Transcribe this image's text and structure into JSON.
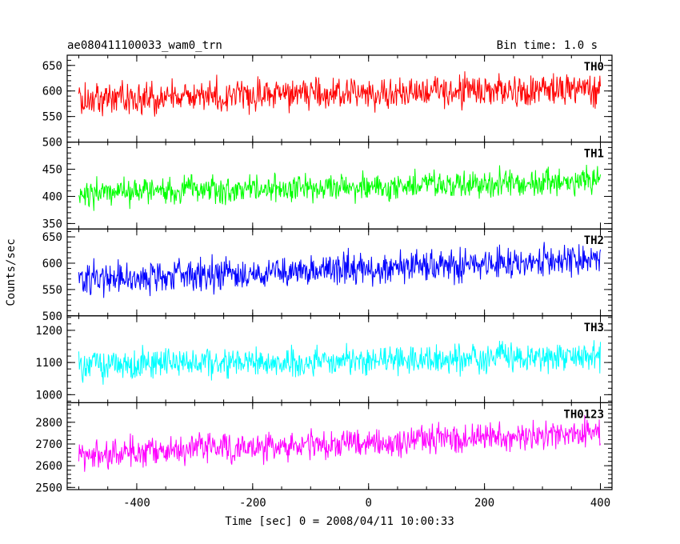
{
  "header": {
    "left": "ae080411100033_wam0_trn",
    "right": "Bin time: 1.0 s"
  },
  "chart_data": {
    "type": "line",
    "title": "ae080411100033_wam0_trn",
    "subtitle": "Bin time: 1.0 s",
    "xlabel": "Time [sec] 0 = 2008/04/11 10:00:33",
    "ylabel": "Counts/sec",
    "xlim": [
      -520,
      420
    ],
    "x_ticks": [
      -400,
      -200,
      0,
      200,
      400
    ],
    "x_start": -500,
    "x_end": 400,
    "bin_time": 1.0,
    "grid": false,
    "legend": "none",
    "panels": [
      {
        "name": "TH0",
        "color": "#ff0000",
        "ylim": [
          500,
          670
        ],
        "y_ticks": [
          500,
          550,
          600,
          650
        ],
        "mean_start": 585,
        "mean_end": 605,
        "noise": 30
      },
      {
        "name": "TH1",
        "color": "#00ff00",
        "ylim": [
          340,
          500
        ],
        "y_ticks": [
          350,
          400,
          450
        ],
        "mean_start": 405,
        "mean_end": 430,
        "noise": 25
      },
      {
        "name": "TH2",
        "color": "#0000ff",
        "ylim": [
          500,
          665
        ],
        "y_ticks": [
          500,
          550,
          600,
          650
        ],
        "mean_start": 570,
        "mean_end": 605,
        "noise": 30
      },
      {
        "name": "TH3",
        "color": "#00ffff",
        "ylim": [
          975,
          1245
        ],
        "y_ticks": [
          1000,
          1100,
          1200
        ],
        "mean_start": 1090,
        "mean_end": 1120,
        "noise": 45
      },
      {
        "name": "TH0123",
        "color": "#ff00ff",
        "ylim": [
          2490,
          2890
        ],
        "y_ticks": [
          2500,
          2600,
          2700,
          2800
        ],
        "mean_start": 2650,
        "mean_end": 2750,
        "noise": 65
      }
    ]
  }
}
